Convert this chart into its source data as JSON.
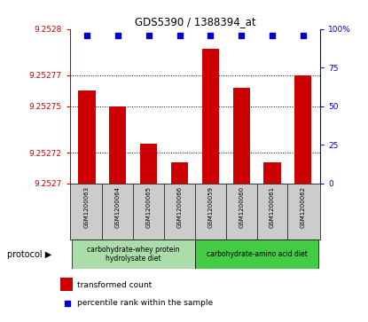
{
  "title": "GDS5390 / 1388394_at",
  "samples": [
    "GSM1200063",
    "GSM1200064",
    "GSM1200065",
    "GSM1200066",
    "GSM1200059",
    "GSM1200060",
    "GSM1200061",
    "GSM1200062"
  ],
  "bar_values": [
    9.25276,
    9.25275,
    9.252726,
    9.252714,
    9.252787,
    9.252762,
    9.252714,
    9.25277
  ],
  "percentile_values": [
    96,
    96,
    96,
    96,
    96,
    96,
    96,
    96
  ],
  "ylim_left": [
    9.2527,
    9.2528
  ],
  "ylim_right": [
    0,
    100
  ],
  "yticks_left": [
    9.2527,
    9.25272,
    9.25275,
    9.25277,
    9.2528
  ],
  "ytick_labels_left": [
    "9.2527",
    "9.25272",
    "9.25275",
    "9.25277",
    "9.2528"
  ],
  "yticks_right": [
    0,
    25,
    50,
    75,
    100
  ],
  "ytick_labels_right": [
    "0",
    "25",
    "50",
    "75",
    "100%"
  ],
  "bar_color": "#cc0000",
  "dot_color": "#0000cc",
  "protocol_groups": [
    {
      "label": "carbohydrate-whey protein\nhydrolysate diet",
      "start": 0,
      "end": 3,
      "color": "#aaddaa"
    },
    {
      "label": "carbohydrate-amino acid diet",
      "start": 4,
      "end": 7,
      "color": "#44cc44"
    }
  ],
  "protocol_label": "protocol",
  "legend_bar_label": "transformed count",
  "legend_dot_label": "percentile rank within the sample",
  "sample_box_color": "#cccccc"
}
